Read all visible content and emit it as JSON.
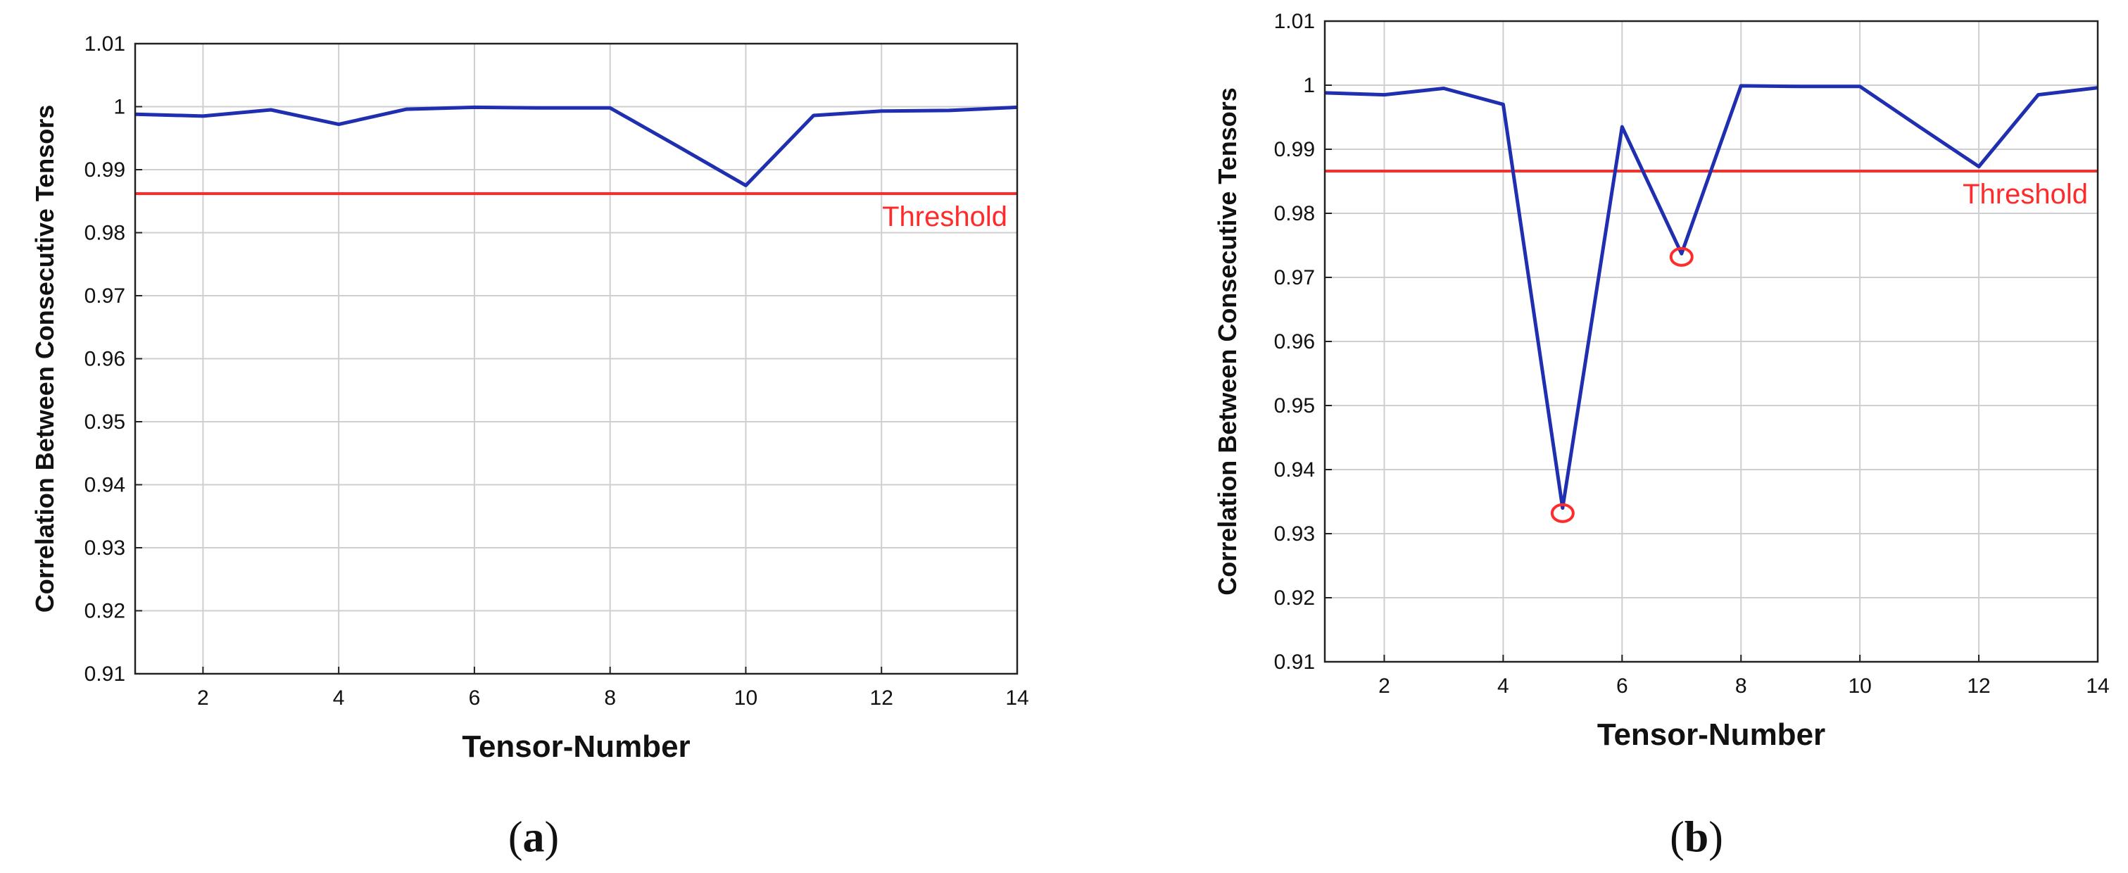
{
  "chart_data": [
    {
      "type": "line",
      "panel_label": "a",
      "xlabel": "Tensor-Number",
      "ylabel": "Correlation Between Consecutive Tensors",
      "xlim": [
        1,
        14
      ],
      "ylim": [
        0.91,
        1.01
      ],
      "xticks": [
        2,
        4,
        6,
        8,
        10,
        12,
        14
      ],
      "yticks": [
        0.91,
        0.92,
        0.93,
        0.94,
        0.95,
        0.96,
        0.97,
        0.98,
        0.99,
        1,
        1.01
      ],
      "ytick_labels": [
        "0.91",
        "0.92",
        "0.93",
        "0.94",
        "0.95",
        "0.96",
        "0.97",
        "0.98",
        "0.99",
        "1",
        "1.01"
      ],
      "grid": true,
      "series": [
        {
          "color": "#1f2fb0",
          "x": [
            1,
            2,
            3,
            4,
            5,
            6,
            7,
            8,
            9,
            10,
            11,
            12,
            13,
            14
          ],
          "y": [
            0.9988,
            0.9985,
            0.9995,
            0.9972,
            0.9996,
            0.9999,
            0.9998,
            0.9998,
            0.9937,
            0.9875,
            0.9986,
            0.9993,
            0.9994,
            0.9999
          ]
        }
      ],
      "threshold": {
        "value": 0.9862,
        "label": "Threshold",
        "color": "#ff2a2a"
      },
      "markers": []
    },
    {
      "type": "line",
      "panel_label": "b",
      "xlabel": "Tensor-Number",
      "ylabel": "Correlation Between Consecutive Tensors",
      "xlim": [
        1,
        14
      ],
      "ylim": [
        0.91,
        1.01
      ],
      "xticks": [
        2,
        4,
        6,
        8,
        10,
        12,
        14
      ],
      "yticks": [
        0.91,
        0.92,
        0.93,
        0.94,
        0.95,
        0.96,
        0.97,
        0.98,
        0.99,
        1,
        1.01
      ],
      "ytick_labels": [
        "0.91",
        "0.92",
        "0.93",
        "0.94",
        "0.95",
        "0.96",
        "0.97",
        "0.98",
        "0.99",
        "1",
        "1.01"
      ],
      "grid": true,
      "series": [
        {
          "color": "#1f2fb0",
          "x": [
            1,
            2,
            3,
            4,
            5,
            6,
            7,
            8,
            9,
            10,
            11,
            12,
            13,
            14
          ],
          "y": [
            0.9988,
            0.9985,
            0.9995,
            0.997,
            0.934,
            0.9935,
            0.9737,
            0.9999,
            0.9998,
            0.9998,
            0.9935,
            0.9873,
            0.9985,
            0.9996
          ]
        }
      ],
      "threshold": {
        "value": 0.9866,
        "label": "Threshold",
        "color": "#ff2a2a"
      },
      "markers": [
        {
          "x": 5,
          "y": 0.9332,
          "color": "#ff2a2a"
        },
        {
          "x": 7,
          "y": 0.9732,
          "color": "#ff2a2a"
        }
      ]
    }
  ],
  "captions": [
    {
      "open": "(",
      "letter": "a",
      "close": ")"
    },
    {
      "open": "(",
      "letter": "b",
      "close": ")"
    }
  ]
}
